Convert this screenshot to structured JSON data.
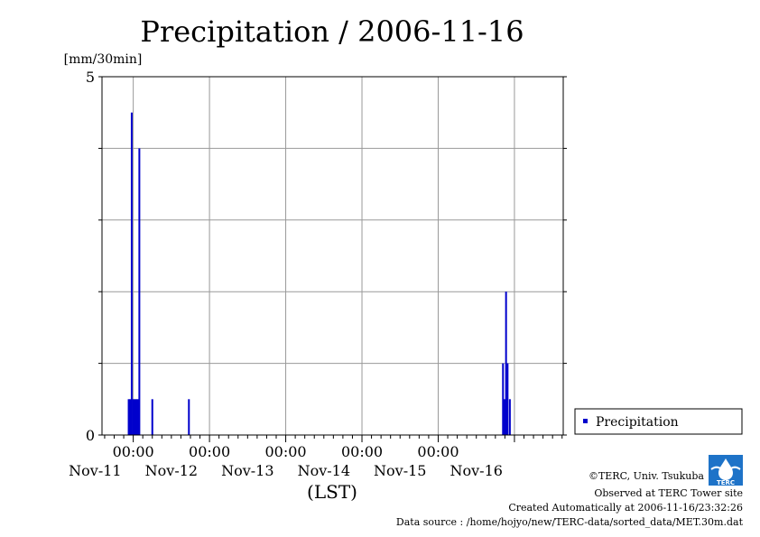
{
  "chart_data": {
    "type": "bar",
    "title": "Precipitation / 2006-11-16",
    "ylabel": "[mm/30min]",
    "xlabel": "(LST)",
    "ylim": [
      0,
      5
    ],
    "y_ticks": [
      0,
      5
    ],
    "x_range_days": [
      10.59,
      16.64
    ],
    "grid": true,
    "time_ticks": [
      "00:00",
      "00:00",
      "00:00",
      "00:00",
      "00:00"
    ],
    "date_labels": [
      "Nov-11",
      "Nov-12",
      "Nov-13",
      "Nov-14",
      "Nov-15",
      "Nov-16"
    ],
    "legend": {
      "position": "right",
      "label": "Precipitation"
    },
    "series": [
      {
        "name": "Precipitation",
        "color": "#0000cc",
        "x_days": [
          10.94,
          10.96,
          10.98,
          11.0,
          11.02,
          11.04,
          11.06,
          11.08,
          11.25,
          11.73,
          15.85,
          15.87,
          15.89,
          15.91,
          15.94
        ],
        "values": [
          0.5,
          0.5,
          4.5,
          0.5,
          0.5,
          0.5,
          0.5,
          4.0,
          0.5,
          0.5,
          1.0,
          0.5,
          2.0,
          1.0,
          0.5
        ]
      }
    ]
  },
  "footer": {
    "copyright": "©TERC, Univ. Tsukuba",
    "observed": "Observed at TERC Tower site",
    "created": "Created Automatically at 2006-11-16/23:32:26",
    "source": "Data source : /home/hojyo/new/TERC-data/sorted_data/MET.30m.dat",
    "logo_text": "TERC"
  }
}
